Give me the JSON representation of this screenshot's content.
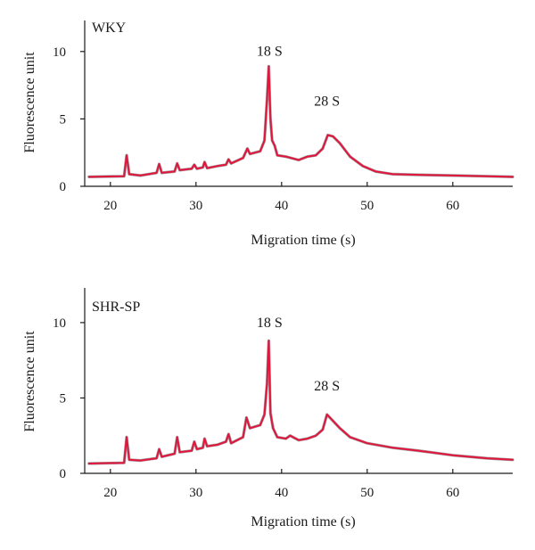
{
  "colors": {
    "trace": "#e0163a",
    "axis": "#1a1a1a"
  },
  "chart_data": [
    {
      "type": "line",
      "panel_label": "WKY",
      "xlabel": "Migration time (s)",
      "ylabel": "Fluorescence unit",
      "xlim": [
        17,
        67
      ],
      "ylim": [
        0,
        12.3
      ],
      "x_ticks": [
        20,
        30,
        40,
        50,
        60
      ],
      "y_ticks": [
        0,
        5,
        10
      ],
      "x_tick_labels": [
        "20",
        "30",
        "40",
        "50",
        "60"
      ],
      "y_tick_labels": [
        "0",
        "5",
        "10"
      ],
      "annotations": [
        {
          "text": "18 S",
          "x": 38.6,
          "y": 9.7
        },
        {
          "text": "28 S",
          "x": 45.3,
          "y": 6.0
        }
      ],
      "series": [
        {
          "points": [
            [
              17.5,
              0.7
            ],
            [
              21.6,
              0.75
            ],
            [
              21.9,
              2.3
            ],
            [
              22.2,
              0.9
            ],
            [
              23.5,
              0.8
            ],
            [
              25.4,
              1.0
            ],
            [
              25.7,
              1.65
            ],
            [
              26.0,
              1.0
            ],
            [
              27.5,
              1.1
            ],
            [
              27.8,
              1.7
            ],
            [
              28.1,
              1.2
            ],
            [
              29.5,
              1.3
            ],
            [
              29.8,
              1.6
            ],
            [
              30.1,
              1.3
            ],
            [
              30.8,
              1.4
            ],
            [
              31.0,
              1.8
            ],
            [
              31.3,
              1.35
            ],
            [
              32.5,
              1.5
            ],
            [
              33.5,
              1.6
            ],
            [
              33.8,
              2.0
            ],
            [
              34.1,
              1.7
            ],
            [
              35.5,
              2.1
            ],
            [
              36.0,
              2.8
            ],
            [
              36.3,
              2.4
            ],
            [
              37.5,
              2.6
            ],
            [
              38.0,
              3.4
            ],
            [
              38.3,
              6.5
            ],
            [
              38.5,
              8.9
            ],
            [
              38.7,
              5.0
            ],
            [
              38.9,
              3.4
            ],
            [
              39.2,
              3.0
            ],
            [
              39.5,
              2.3
            ],
            [
              40.5,
              2.2
            ],
            [
              42.0,
              1.95
            ],
            [
              43.0,
              2.2
            ],
            [
              44.0,
              2.3
            ],
            [
              44.8,
              2.8
            ],
            [
              45.4,
              3.8
            ],
            [
              46.0,
              3.7
            ],
            [
              46.8,
              3.2
            ],
            [
              48.0,
              2.2
            ],
            [
              49.5,
              1.5
            ],
            [
              51.0,
              1.1
            ],
            [
              53.0,
              0.9
            ],
            [
              56.0,
              0.85
            ],
            [
              60.0,
              0.8
            ],
            [
              64.0,
              0.75
            ],
            [
              67.0,
              0.7
            ]
          ]
        }
      ]
    },
    {
      "type": "line",
      "panel_label": "SHR-SP",
      "xlabel": "Migration time (s)",
      "ylabel": "Fluorescence unit",
      "xlim": [
        17,
        67
      ],
      "ylim": [
        0,
        12.3
      ],
      "x_ticks": [
        20,
        30,
        40,
        50,
        60
      ],
      "y_ticks": [
        0,
        5,
        10
      ],
      "x_tick_labels": [
        "20",
        "30",
        "40",
        "50",
        "60"
      ],
      "y_tick_labels": [
        "0",
        "5",
        "10"
      ],
      "annotations": [
        {
          "text": "18 S",
          "x": 38.6,
          "y": 9.7
        },
        {
          "text": "28 S",
          "x": 45.3,
          "y": 5.5
        }
      ],
      "series": [
        {
          "points": [
            [
              17.5,
              0.65
            ],
            [
              21.6,
              0.7
            ],
            [
              21.9,
              2.4
            ],
            [
              22.2,
              0.9
            ],
            [
              23.5,
              0.85
            ],
            [
              25.4,
              1.0
            ],
            [
              25.7,
              1.6
            ],
            [
              26.0,
              1.1
            ],
            [
              27.5,
              1.3
            ],
            [
              27.8,
              2.4
            ],
            [
              28.1,
              1.4
            ],
            [
              29.5,
              1.5
            ],
            [
              29.8,
              2.1
            ],
            [
              30.1,
              1.6
            ],
            [
              30.8,
              1.7
            ],
            [
              31.0,
              2.3
            ],
            [
              31.3,
              1.8
            ],
            [
              32.5,
              1.9
            ],
            [
              33.5,
              2.1
            ],
            [
              33.8,
              2.6
            ],
            [
              34.1,
              2.0
            ],
            [
              35.5,
              2.4
            ],
            [
              35.9,
              3.7
            ],
            [
              36.3,
              3.0
            ],
            [
              37.5,
              3.2
            ],
            [
              38.0,
              3.9
            ],
            [
              38.3,
              6.0
            ],
            [
              38.5,
              8.8
            ],
            [
              38.7,
              4.0
            ],
            [
              39.0,
              3.0
            ],
            [
              39.5,
              2.4
            ],
            [
              40.5,
              2.3
            ],
            [
              41.0,
              2.5
            ],
            [
              42.0,
              2.2
            ],
            [
              43.0,
              2.3
            ],
            [
              44.0,
              2.5
            ],
            [
              44.8,
              2.9
            ],
            [
              45.3,
              3.9
            ],
            [
              45.8,
              3.6
            ],
            [
              46.8,
              3.0
            ],
            [
              48.0,
              2.4
            ],
            [
              50.0,
              2.0
            ],
            [
              53.0,
              1.7
            ],
            [
              56.0,
              1.5
            ],
            [
              60.0,
              1.2
            ],
            [
              64.0,
              1.0
            ],
            [
              67.0,
              0.9
            ]
          ]
        }
      ]
    }
  ]
}
